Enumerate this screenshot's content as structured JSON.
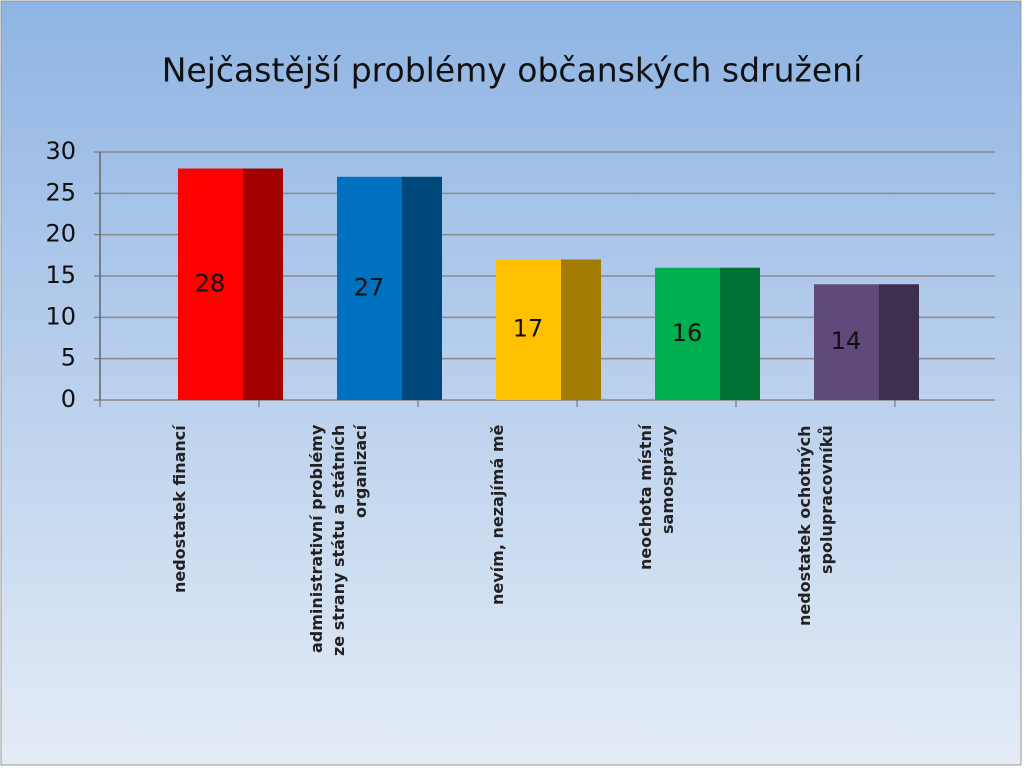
{
  "chart_data": {
    "type": "bar",
    "title": "Nejčastější problémy občanských sdružení",
    "categories": [
      "nedostatek financí",
      "administrativní problémy\nze strany státu a státních\norganizací",
      "nevím, nezajímá mě",
      "neochota místní\nsamosprávy",
      "nedostatek ochotných\nspolupracovníků"
    ],
    "values": [
      28,
      27,
      17,
      16,
      14
    ],
    "colors": [
      "#ff0000",
      "#0070c0",
      "#ffc000",
      "#00b050",
      "#604a7b"
    ],
    "ylim": [
      0,
      30
    ],
    "yticks": [
      0,
      5,
      10,
      15,
      20,
      25,
      30
    ],
    "grid": true
  }
}
